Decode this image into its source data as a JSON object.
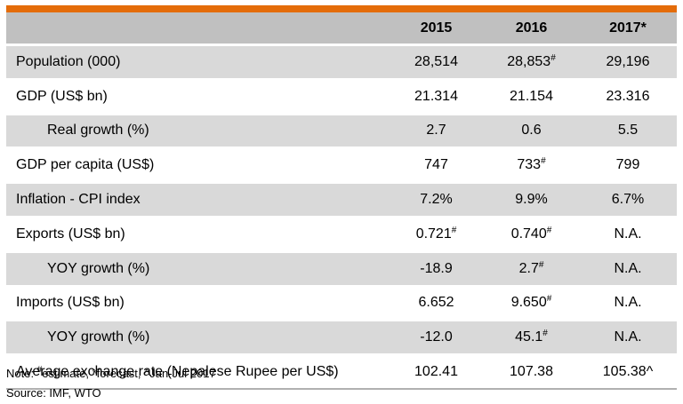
{
  "table": {
    "headers": [
      "",
      "2015",
      "2016",
      "2017*"
    ],
    "rows": [
      {
        "label": "Population (000)",
        "indent": false,
        "shade": true,
        "values": [
          {
            "v": "28,514",
            "s": ""
          },
          {
            "v": "28,853",
            "s": "#"
          },
          {
            "v": "29,196",
            "s": ""
          }
        ]
      },
      {
        "label": "GDP (US$ bn)",
        "indent": false,
        "shade": false,
        "values": [
          {
            "v": "21.314",
            "s": ""
          },
          {
            "v": "21.154",
            "s": ""
          },
          {
            "v": "23.316",
            "s": ""
          }
        ]
      },
      {
        "label": "Real growth (%)",
        "indent": true,
        "shade": true,
        "values": [
          {
            "v": "2.7",
            "s": ""
          },
          {
            "v": "0.6",
            "s": ""
          },
          {
            "v": "5.5",
            "s": ""
          }
        ]
      },
      {
        "label": "GDP per capita (US$)",
        "indent": false,
        "shade": false,
        "values": [
          {
            "v": "747",
            "s": ""
          },
          {
            "v": "733",
            "s": "#"
          },
          {
            "v": "799",
            "s": ""
          }
        ]
      },
      {
        "label": "Inflation - CPI index",
        "indent": false,
        "shade": true,
        "values": [
          {
            "v": "7.2%",
            "s": ""
          },
          {
            "v": "9.9%",
            "s": ""
          },
          {
            "v": "6.7%",
            "s": ""
          }
        ]
      },
      {
        "label": "Exports (US$ bn)",
        "indent": false,
        "shade": false,
        "values": [
          {
            "v": "0.721",
            "s": "#"
          },
          {
            "v": "0.740",
            "s": "#"
          },
          {
            "v": "N.A.",
            "s": ""
          }
        ]
      },
      {
        "label": "YOY growth (%)",
        "indent": true,
        "shade": true,
        "values": [
          {
            "v": "-18.9",
            "s": ""
          },
          {
            "v": "2.7",
            "s": "#"
          },
          {
            "v": "N.A.",
            "s": ""
          }
        ]
      },
      {
        "label": "Imports (US$ bn)",
        "indent": false,
        "shade": false,
        "values": [
          {
            "v": "6.652",
            "s": ""
          },
          {
            "v": "9.650",
            "s": "#"
          },
          {
            "v": "N.A.",
            "s": ""
          }
        ]
      },
      {
        "label": "YOY growth (%)",
        "indent": true,
        "shade": true,
        "values": [
          {
            "v": "-12.0",
            "s": ""
          },
          {
            "v": "45.1",
            "s": "#"
          },
          {
            "v": "N.A.",
            "s": ""
          }
        ]
      },
      {
        "label": "Average exchange rate (Nepalese Rupee per US$)",
        "indent": false,
        "shade": false,
        "values": [
          {
            "v": "102.41",
            "s": ""
          },
          {
            "v": "107.38",
            "s": ""
          },
          {
            "v": "105.38^",
            "s": ""
          }
        ]
      }
    ]
  },
  "note": {
    "prefix": "Note: ",
    "estimate_mark": "#",
    "text": "estimate, *forecast, ^Jan-Jul 2017"
  },
  "source": "Source: IMF, WTO",
  "colors": {
    "accent": "#e46c0a",
    "header_bg": "#c0c0c0",
    "shade_bg": "#d9d9d9"
  }
}
